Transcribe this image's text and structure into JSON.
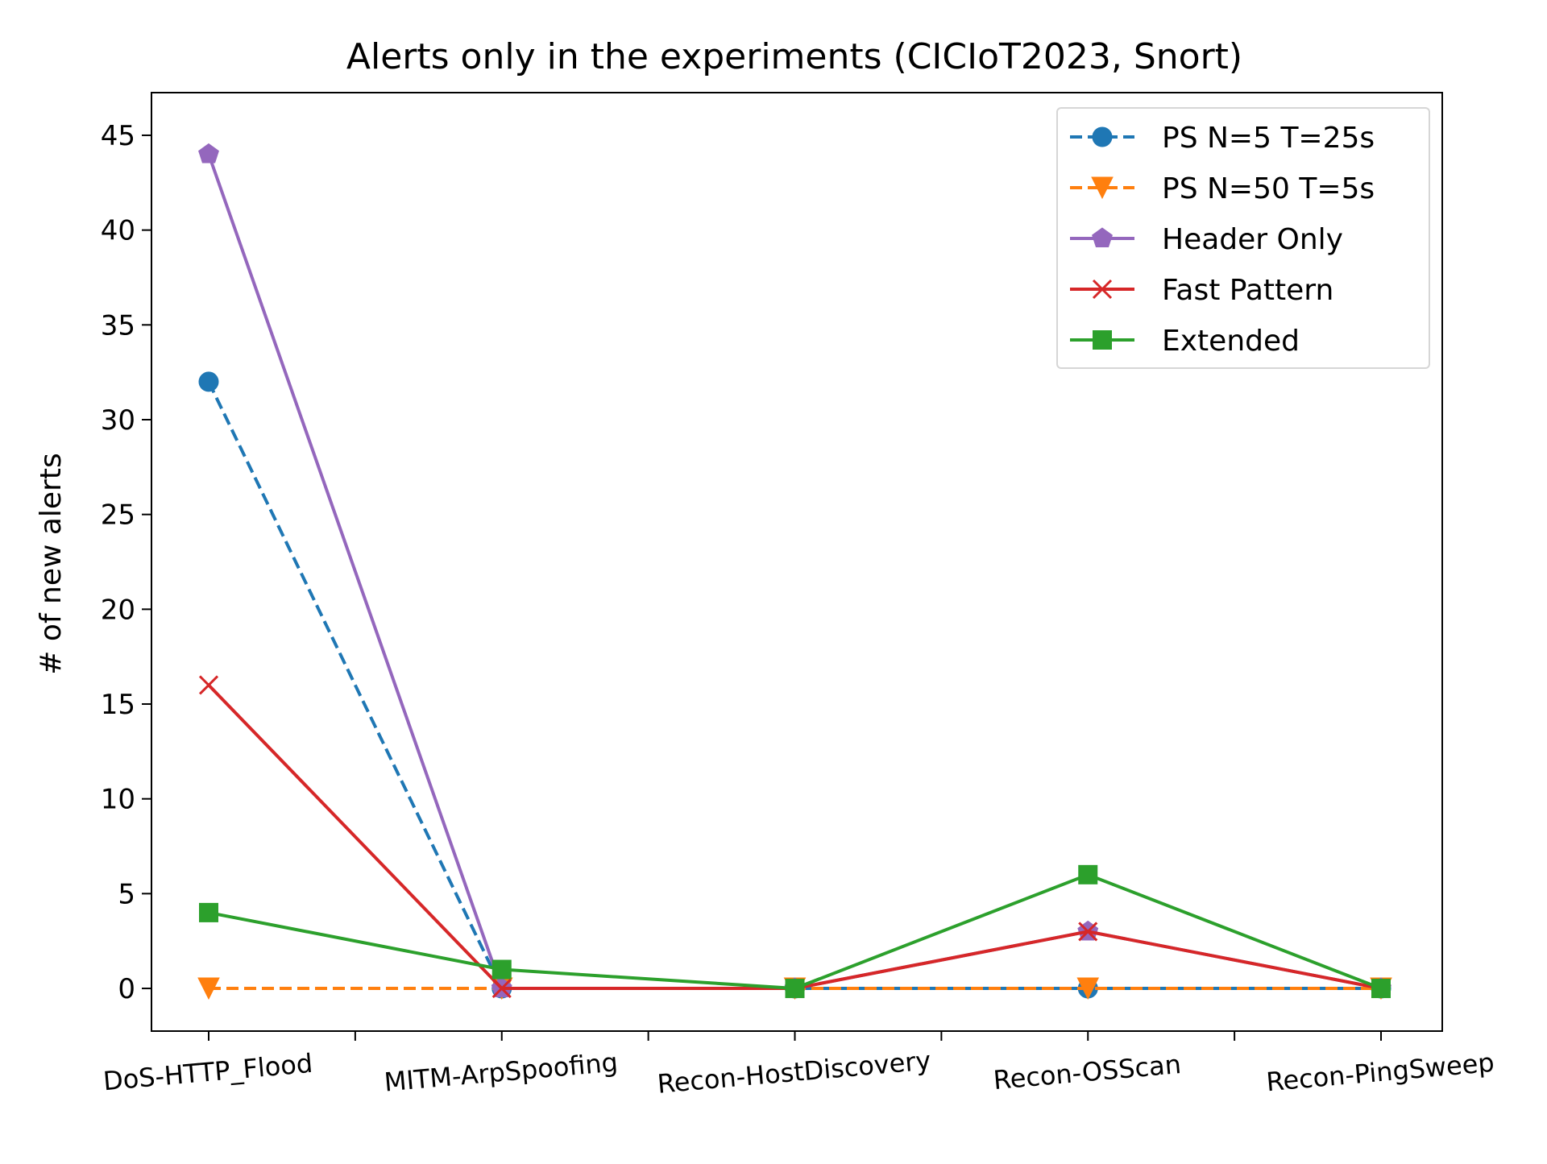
{
  "chart_data": {
    "type": "line",
    "title": "Alerts only in the experiments (CICIoT2023, Snort)",
    "xlabel": "",
    "ylabel": "# of new alerts",
    "categories": [
      "DoS-HTTP_Flood",
      "MITM-ArpSpoofing",
      "Recon-HostDiscovery",
      "Recon-OSScan",
      "Recon-PingSweep"
    ],
    "yticks": [
      "0",
      "5",
      "10",
      "15",
      "20",
      "25",
      "30",
      "35",
      "40",
      "45"
    ],
    "ylim": [
      -2.25,
      47.25
    ],
    "grid": false,
    "legend_position": "top-right",
    "series": [
      {
        "name": "PS N=5 T=25s",
        "values": [
          32,
          0,
          0,
          0,
          0
        ],
        "color": "#1f77b4",
        "line_style": "dashed",
        "marker": "circle"
      },
      {
        "name": "PS N=50 T=5s",
        "values": [
          0,
          0,
          0,
          0,
          0
        ],
        "color": "#ff7f0e",
        "line_style": "dashed",
        "marker": "triangle-down"
      },
      {
        "name": "Header Only",
        "values": [
          44,
          0,
          0,
          3,
          0
        ],
        "color": "#9467bd",
        "line_style": "solid",
        "marker": "pentagon"
      },
      {
        "name": "Fast Pattern",
        "values": [
          16,
          0,
          0,
          3,
          0
        ],
        "color": "#d62728",
        "line_style": "solid",
        "marker": "x"
      },
      {
        "name": "Extended",
        "values": [
          4,
          1,
          0,
          6,
          0
        ],
        "color": "#2ca02c",
        "line_style": "solid",
        "marker": "square"
      }
    ]
  }
}
